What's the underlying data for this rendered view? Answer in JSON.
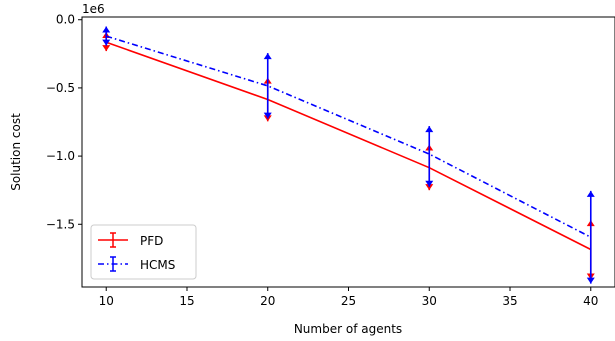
{
  "chart_data": {
    "type": "line",
    "xlabel": "Number of agents",
    "ylabel": "Solution cost",
    "offset_text": "1e6",
    "xlim": [
      8.5,
      41.5
    ],
    "ylim": [
      -1.96,
      0.02
    ],
    "xticks": [
      10,
      15,
      20,
      25,
      30,
      35,
      40
    ],
    "xtick_labels": [
      "10",
      "15",
      "20",
      "25",
      "30",
      "35",
      "40"
    ],
    "yticks": [
      0.0,
      -0.5,
      -1.0,
      -1.5
    ],
    "ytick_labels": [
      "0.0",
      "−0.5",
      "−1.0",
      "−1.5"
    ],
    "grid": false,
    "legend_position": "lower-left",
    "x": [
      10,
      20,
      30,
      40
    ],
    "series": [
      {
        "name": "PFD",
        "color": "#ff0000",
        "linestyle": "solid",
        "values": [
          -0.165,
          -0.585,
          -1.085,
          -1.685
        ],
        "err_low": [
          -0.23,
          -0.745,
          -1.25,
          -1.905
        ],
        "err_high": [
          -0.09,
          -0.425,
          -0.915,
          -1.47
        ]
      },
      {
        "name": "HCMS",
        "color": "#0000ff",
        "linestyle": "dashdot",
        "values": [
          -0.12,
          -0.485,
          -0.985,
          -1.595
        ],
        "err_low": [
          -0.19,
          -0.725,
          -1.225,
          -1.935
        ],
        "err_high": [
          -0.05,
          -0.245,
          -0.78,
          -1.255
        ]
      }
    ]
  }
}
